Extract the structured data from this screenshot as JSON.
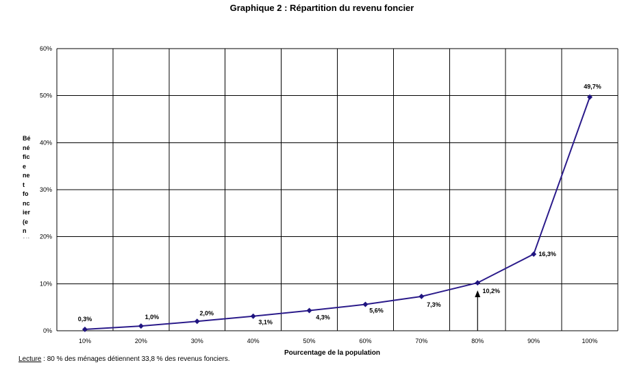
{
  "chart_data": {
    "type": "line",
    "title": "Graphique 2 : Répartition du revenu foncier",
    "xlabel": "Pourcentage de la population",
    "ylabel_lines": [
      "Bé",
      "né",
      "fic",
      "e",
      "ne",
      "t",
      "fo",
      "nc",
      "ier",
      "(e",
      "n",
      "%)"
    ],
    "categories": [
      "10%",
      "20%",
      "30%",
      "40%",
      "50%",
      "60%",
      "70%",
      "80%",
      "90%",
      "100%"
    ],
    "values": [
      0.3,
      1.0,
      2.0,
      3.1,
      4.3,
      5.6,
      7.3,
      10.2,
      16.3,
      49.7
    ],
    "data_labels": [
      "0,3%",
      "1,0%",
      "2,0%",
      "3,1%",
      "4,3%",
      "5,6%",
      "7,3%",
      "10,2%",
      "16,3%",
      "49,7%"
    ],
    "y_ticks": [
      0,
      10,
      20,
      30,
      40,
      50,
      60
    ],
    "y_tick_labels": [
      "0%",
      "10%",
      "20%",
      "30%",
      "40%",
      "50%",
      "60%"
    ],
    "ylim": [
      0,
      60
    ],
    "grid": true,
    "line_color": "#2a1a8a",
    "marker_color": "#1f1480"
  },
  "note": {
    "label": "Lecture",
    "text": " : 80 % des ménages détiennent 33,8 % des revenus fonciers."
  }
}
